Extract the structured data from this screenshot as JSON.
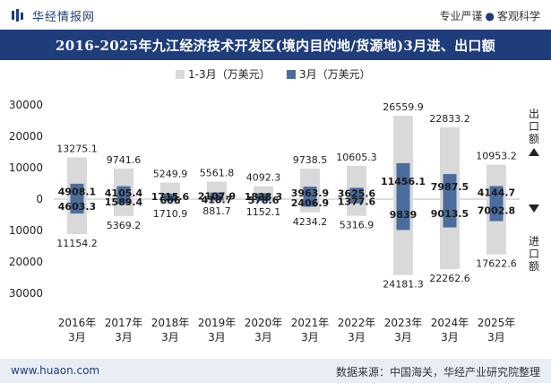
{
  "header": {
    "brand": "华经情报网",
    "tagline_left": "专业严谨",
    "tagline_right": "客观科学"
  },
  "title": "2016-2025年九江经济技术开发区(境内目的地/货源地)3月进、出口额",
  "footer": {
    "site": "www.huaon.com",
    "source": "数据来源：中国海关，华经产业研究院整理"
  },
  "side_labels": {
    "export": "出口额",
    "import": "进口额"
  },
  "colors": {
    "brand": "#1f3d7a",
    "cumulative": "#d9d9d9",
    "monthly": "#4a6d9e"
  },
  "chart_data": {
    "type": "bar",
    "title": "2016-2025年九江经济技术开发区(境内目的地/货源地)3月进、出口额",
    "categories": [
      "2016年\n3月",
      "2017年\n3月",
      "2018年\n3月",
      "2019年\n3月",
      "2020年\n3月",
      "2021年\n3月",
      "2022年\n3月",
      "2023年\n3月",
      "2024年\n3月",
      "2025年\n3月"
    ],
    "legend": [
      "1-3月（万美元）",
      "3月（万美元）"
    ],
    "ylim": [
      -30000,
      30000
    ],
    "yticks": [
      30000,
      20000,
      10000,
      0,
      10000,
      20000,
      30000
    ],
    "series": [
      {
        "name": "1-3月出口",
        "values": [
          13275.1,
          9741.6,
          5249.9,
          5561.8,
          4092.3,
          9738.5,
          10605.3,
          26559.9,
          22833.2,
          10953.2
        ]
      },
      {
        "name": "3月出口",
        "values": [
          4908.1,
          4105.4,
          1715.6,
          2107.9,
          1838.3,
          3963.9,
          3625.6,
          11456.1,
          7987.5,
          4144.7
        ]
      },
      {
        "name": "1-3月进口",
        "values": [
          11154.2,
          5369.2,
          1710.9,
          881.7,
          1152.1,
          4234.2,
          5316.9,
          24181.3,
          22262.6,
          17622.6
        ]
      },
      {
        "name": "3月进口",
        "values": [
          4603.3,
          1589.4,
          606,
          418.7,
          578.6,
          2406.9,
          1377.6,
          9839,
          9013.5,
          7002.8
        ]
      }
    ]
  }
}
